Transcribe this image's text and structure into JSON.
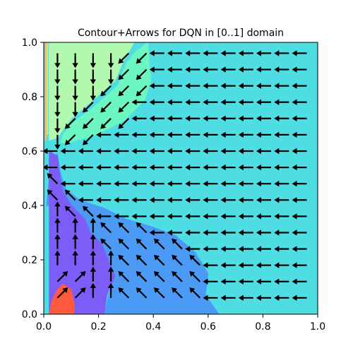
{
  "chart_data": {
    "type": "contour",
    "title": "Contour+Arrows for DQN in [0..1] domain",
    "xlabel": "",
    "ylabel": "",
    "xlim": [
      0,
      1
    ],
    "ylim": [
      0,
      1
    ],
    "x_ticks": [
      "0.0",
      "0.2",
      "0.4",
      "0.6",
      "0.8",
      "1.0"
    ],
    "y_ticks": [
      "0.0",
      "0.2",
      "0.4",
      "0.6",
      "0.8",
      "1.0"
    ],
    "grid": false,
    "legend": "none",
    "colors": {
      "cyan_region": "#4edde3",
      "mint_region": "#6cf6c2",
      "light_green_region": "#b2f9b0",
      "blue_region": "#4b9bf6",
      "violet_region": "#7d5df8",
      "red_region": "#ff5a3f",
      "orange_edge": "#ffb35c",
      "yellow_edge": "#e8e06a",
      "arrow": "#000000"
    },
    "regions": [
      {
        "id": "cyan",
        "polygon": [
          [
            0.39,
            1.0
          ],
          [
            1.0,
            1.0
          ],
          [
            1.0,
            0.0
          ],
          [
            0.65,
            0.0
          ],
          [
            0.59,
            0.07
          ],
          [
            0.6,
            0.15
          ],
          [
            0.53,
            0.25
          ],
          [
            0.46,
            0.3
          ],
          [
            0.33,
            0.33
          ],
          [
            0.25,
            0.38
          ],
          [
            0.15,
            0.41
          ],
          [
            0.09,
            0.45
          ],
          [
            0.06,
            0.5
          ],
          [
            0.05,
            0.56
          ],
          [
            0.07,
            0.62
          ],
          [
            0.18,
            0.65
          ],
          [
            0.28,
            0.7
          ],
          [
            0.36,
            0.79
          ],
          [
            0.39,
            0.84
          ]
        ]
      },
      {
        "id": "mint",
        "polygon": [
          [
            0.06,
            0.63
          ],
          [
            0.07,
            0.66
          ],
          [
            0.1,
            0.7
          ],
          [
            0.18,
            0.76
          ],
          [
            0.27,
            0.84
          ],
          [
            0.3,
            0.92
          ],
          [
            0.33,
            0.96
          ],
          [
            0.38,
            1.0
          ],
          [
            0.39,
            0.86
          ],
          [
            0.37,
            0.79
          ],
          [
            0.29,
            0.71
          ],
          [
            0.19,
            0.66
          ],
          [
            0.09,
            0.63
          ]
        ]
      },
      {
        "id": "light_green",
        "polygon": [
          [
            0.02,
            1.0
          ],
          [
            0.33,
            1.0
          ],
          [
            0.29,
            0.93
          ],
          [
            0.26,
            0.86
          ],
          [
            0.17,
            0.78
          ],
          [
            0.1,
            0.72
          ],
          [
            0.07,
            0.68
          ],
          [
            0.05,
            0.65
          ],
          [
            0.02,
            0.64
          ]
        ]
      },
      {
        "id": "blue",
        "polygon": [
          [
            0.05,
            0.59
          ],
          [
            0.06,
            0.52
          ],
          [
            0.08,
            0.46
          ],
          [
            0.13,
            0.42
          ],
          [
            0.22,
            0.39
          ],
          [
            0.3,
            0.35
          ],
          [
            0.4,
            0.32
          ],
          [
            0.48,
            0.29
          ],
          [
            0.55,
            0.23
          ],
          [
            0.6,
            0.15
          ],
          [
            0.59,
            0.07
          ],
          [
            0.64,
            0.0
          ],
          [
            0.22,
            0.0
          ],
          [
            0.25,
            0.12
          ],
          [
            0.22,
            0.24
          ],
          [
            0.17,
            0.3
          ],
          [
            0.12,
            0.35
          ],
          [
            0.06,
            0.38
          ],
          [
            0.01,
            0.4
          ],
          [
            0.02,
            0.5
          ],
          [
            0.02,
            0.57
          ]
        ]
      },
      {
        "id": "violet",
        "polygon": [
          [
            0.02,
            0.6
          ],
          [
            0.05,
            0.58
          ],
          [
            0.06,
            0.5
          ],
          [
            0.07,
            0.45
          ],
          [
            0.1,
            0.4
          ],
          [
            0.13,
            0.37
          ],
          [
            0.15,
            0.35
          ],
          [
            0.17,
            0.3
          ],
          [
            0.21,
            0.26
          ],
          [
            0.26,
            0.14
          ],
          [
            0.23,
            0.07
          ],
          [
            0.22,
            0.0
          ],
          [
            0.02,
            0.0
          ],
          [
            0.02,
            0.3
          ]
        ]
      },
      {
        "id": "red",
        "polygon": [
          [
            0.02,
            0.0
          ],
          [
            0.11,
            0.0
          ],
          [
            0.11,
            0.04
          ],
          [
            0.1,
            0.09
          ],
          [
            0.07,
            0.11
          ],
          [
            0.05,
            0.09
          ],
          [
            0.03,
            0.05
          ]
        ]
      }
    ],
    "arrows": {
      "x_positions": [
        0.05,
        0.115,
        0.18,
        0.245,
        0.31,
        0.375,
        0.44,
        0.505,
        0.57,
        0.635,
        0.7,
        0.765,
        0.83,
        0.895,
        0.96
      ],
      "rows": [
        {
          "y": 0.96,
          "dirs": [
            "S",
            "S",
            "S",
            "S",
            "SW",
            "SW",
            "W",
            "W",
            "W",
            "W",
            "W",
            "W",
            "W",
            "W",
            "W"
          ]
        },
        {
          "y": 0.9,
          "dirs": [
            "S",
            "S",
            "S",
            "S",
            "SW",
            "SW",
            "W",
            "W",
            "W",
            "W",
            "W",
            "W",
            "W",
            "W",
            "W"
          ]
        },
        {
          "y": 0.84,
          "dirs": [
            "S",
            "S",
            "S",
            "SW",
            "SW",
            "SW",
            "W",
            "W",
            "W",
            "W",
            "W",
            "W",
            "W",
            "W",
            "W"
          ]
        },
        {
          "y": 0.78,
          "dirs": [
            "S",
            "S",
            "SW",
            "SW",
            "SW",
            "W",
            "W",
            "W",
            "W",
            "W",
            "W",
            "W",
            "W",
            "W",
            "W"
          ]
        },
        {
          "y": 0.72,
          "dirs": [
            "S",
            "SW",
            "SW",
            "SW",
            "SW",
            "W",
            "W",
            "W",
            "W",
            "W",
            "W",
            "W",
            "W",
            "W",
            "W"
          ]
        },
        {
          "y": 0.66,
          "dirs": [
            "S",
            "SW",
            "SW",
            "W",
            "W",
            "W",
            "W",
            "W",
            "W",
            "W",
            "W",
            "W",
            "W",
            "W",
            "W"
          ]
        },
        {
          "y": 0.6,
          "dirs": [
            "W",
            "W",
            "W",
            "W",
            "W",
            "W",
            "W",
            "W",
            "W",
            "W",
            "W",
            "W",
            "W",
            "W",
            "W"
          ]
        },
        {
          "y": 0.54,
          "dirs": [
            "W",
            "W",
            "W",
            "W",
            "W",
            "W",
            "W",
            "W",
            "W",
            "W",
            "W",
            "W",
            "W",
            "W",
            "W"
          ]
        },
        {
          "y": 0.48,
          "dirs": [
            "NW",
            "W",
            "W",
            "W",
            "W",
            "W",
            "W",
            "W",
            "W",
            "W",
            "W",
            "W",
            "W",
            "W",
            "W"
          ]
        },
        {
          "y": 0.42,
          "dirs": [
            "NW",
            "NW",
            "W",
            "W",
            "W",
            "W",
            "W",
            "W",
            "W",
            "W",
            "W",
            "W",
            "W",
            "W",
            "W"
          ]
        },
        {
          "y": 0.36,
          "dirs": [
            "N",
            "NW",
            "NW",
            "W",
            "W",
            "W",
            "W",
            "W",
            "W",
            "W",
            "W",
            "W",
            "W",
            "W",
            "W"
          ]
        },
        {
          "y": 0.3,
          "dirs": [
            "N",
            "N",
            "N",
            "NW",
            "NW",
            "NW",
            "W",
            "W",
            "W",
            "W",
            "W",
            "W",
            "W",
            "W",
            "W"
          ]
        },
        {
          "y": 0.24,
          "dirs": [
            "N",
            "N",
            "N",
            "NW",
            "NW",
            "NW",
            "NW",
            "NW",
            "W",
            "W",
            "W",
            "W",
            "W",
            "W",
            "W"
          ]
        },
        {
          "y": 0.18,
          "dirs": [
            "N",
            "N",
            "N",
            "N",
            "NW",
            "NW",
            "NW",
            "NW",
            "NW",
            "W",
            "W",
            "W",
            "W",
            "W",
            "W"
          ]
        },
        {
          "y": 0.12,
          "dirs": [
            "NE",
            "NE",
            "N",
            "N",
            "NW",
            "NW",
            "NW",
            "NW",
            "NW",
            "W",
            "W",
            "W",
            "W",
            "W",
            "W"
          ]
        },
        {
          "y": 0.06,
          "dirs": [
            "NE",
            "NE",
            "N",
            "N",
            "NW",
            "NW",
            "NW",
            "NW",
            "NW",
            "W",
            "W",
            "W",
            "W",
            "W",
            "W"
          ]
        }
      ]
    }
  }
}
